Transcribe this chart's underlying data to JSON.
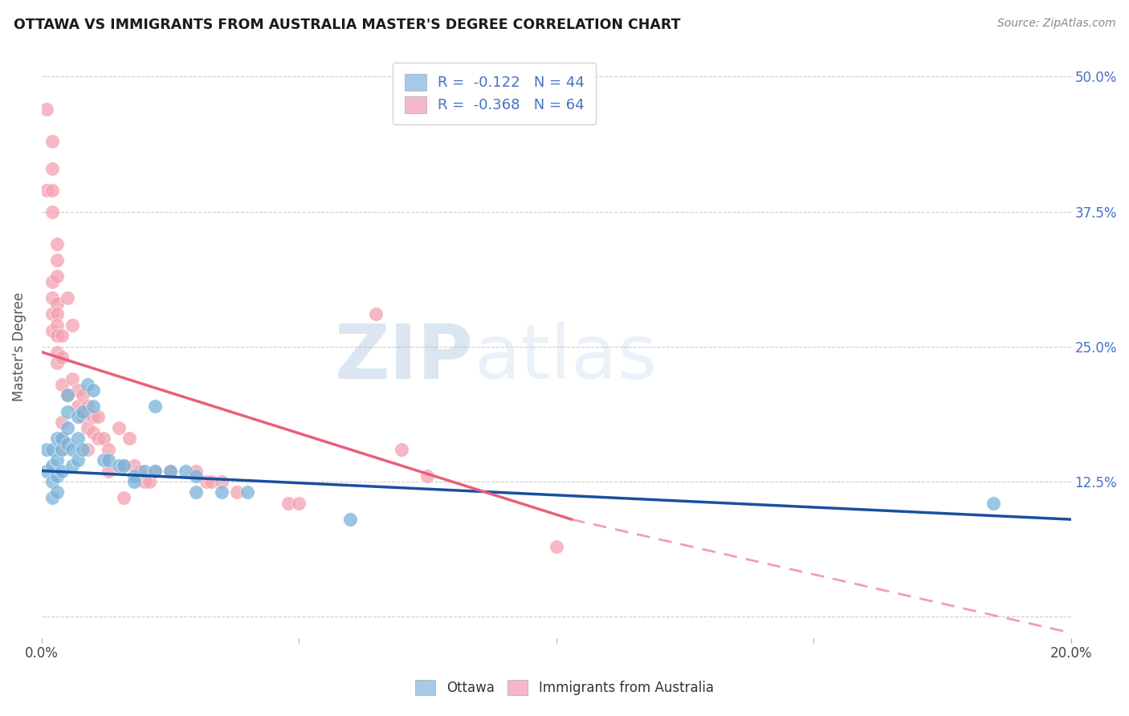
{
  "title": "OTTAWA VS IMMIGRANTS FROM AUSTRALIA MASTER'S DEGREE CORRELATION CHART",
  "source": "Source: ZipAtlas.com",
  "ylabel": "Master's Degree",
  "xmin": 0.0,
  "xmax": 0.2,
  "ymin": -0.02,
  "ymax": 0.52,
  "right_yticklabels": [
    "",
    "12.5%",
    "25.0%",
    "37.5%",
    "50.0%"
  ],
  "right_ytick_vals": [
    0.0,
    0.125,
    0.25,
    0.375,
    0.5
  ],
  "legend_entry_blue": "R =  -0.122   N = 44",
  "legend_entry_pink": "R =  -0.368   N = 64",
  "ottawa_color": "#7ab3d9",
  "australia_color": "#f4a0b0",
  "trend_ottawa_color": "#1a4fa0",
  "trend_australia_color": "#e8607a",
  "legend_box_blue": "#a8c8e8",
  "legend_box_pink": "#f4b8c8",
  "legend_text_color": "#4472c4",
  "watermark_zip": "ZIP",
  "watermark_atlas": "atlas",
  "watermark_color": "#c8d8ee",
  "grid_color": "#cccccc",
  "title_color": "#1a1a1a",
  "source_color": "#888888",
  "trend_ottawa_x0": 0.0,
  "trend_ottawa_y0": 0.135,
  "trend_ottawa_x1": 0.2,
  "trend_ottawa_y1": 0.09,
  "trend_australia_x0": 0.0,
  "trend_australia_y0": 0.245,
  "trend_australia_x1": 0.103,
  "trend_australia_y1": 0.09,
  "trend_australia_dash_x0": 0.103,
  "trend_australia_dash_y0": 0.09,
  "trend_australia_dash_x1": 0.2,
  "trend_australia_dash_y1": -0.015,
  "ottawa_points": [
    [
      0.001,
      0.155
    ],
    [
      0.001,
      0.135
    ],
    [
      0.002,
      0.155
    ],
    [
      0.002,
      0.14
    ],
    [
      0.002,
      0.125
    ],
    [
      0.002,
      0.11
    ],
    [
      0.003,
      0.165
    ],
    [
      0.003,
      0.145
    ],
    [
      0.003,
      0.13
    ],
    [
      0.003,
      0.115
    ],
    [
      0.004,
      0.155
    ],
    [
      0.004,
      0.135
    ],
    [
      0.004,
      0.165
    ],
    [
      0.005,
      0.175
    ],
    [
      0.005,
      0.16
    ],
    [
      0.005,
      0.19
    ],
    [
      0.005,
      0.205
    ],
    [
      0.006,
      0.155
    ],
    [
      0.006,
      0.14
    ],
    [
      0.007,
      0.145
    ],
    [
      0.007,
      0.165
    ],
    [
      0.007,
      0.185
    ],
    [
      0.008,
      0.155
    ],
    [
      0.008,
      0.19
    ],
    [
      0.009,
      0.215
    ],
    [
      0.01,
      0.21
    ],
    [
      0.01,
      0.195
    ],
    [
      0.012,
      0.145
    ],
    [
      0.013,
      0.145
    ],
    [
      0.015,
      0.14
    ],
    [
      0.016,
      0.14
    ],
    [
      0.018,
      0.13
    ],
    [
      0.018,
      0.125
    ],
    [
      0.02,
      0.135
    ],
    [
      0.022,
      0.135
    ],
    [
      0.022,
      0.195
    ],
    [
      0.025,
      0.135
    ],
    [
      0.028,
      0.135
    ],
    [
      0.03,
      0.13
    ],
    [
      0.03,
      0.115
    ],
    [
      0.035,
      0.115
    ],
    [
      0.04,
      0.115
    ],
    [
      0.06,
      0.09
    ],
    [
      0.185,
      0.105
    ]
  ],
  "australia_points": [
    [
      0.001,
      0.47
    ],
    [
      0.001,
      0.395
    ],
    [
      0.002,
      0.44
    ],
    [
      0.002,
      0.415
    ],
    [
      0.002,
      0.395
    ],
    [
      0.002,
      0.375
    ],
    [
      0.002,
      0.31
    ],
    [
      0.002,
      0.295
    ],
    [
      0.002,
      0.28
    ],
    [
      0.002,
      0.265
    ],
    [
      0.003,
      0.345
    ],
    [
      0.003,
      0.33
    ],
    [
      0.003,
      0.315
    ],
    [
      0.003,
      0.29
    ],
    [
      0.003,
      0.28
    ],
    [
      0.003,
      0.27
    ],
    [
      0.003,
      0.26
    ],
    [
      0.003,
      0.245
    ],
    [
      0.003,
      0.235
    ],
    [
      0.004,
      0.26
    ],
    [
      0.004,
      0.24
    ],
    [
      0.004,
      0.215
    ],
    [
      0.004,
      0.18
    ],
    [
      0.004,
      0.165
    ],
    [
      0.004,
      0.155
    ],
    [
      0.005,
      0.295
    ],
    [
      0.005,
      0.205
    ],
    [
      0.006,
      0.27
    ],
    [
      0.006,
      0.22
    ],
    [
      0.007,
      0.21
    ],
    [
      0.007,
      0.195
    ],
    [
      0.008,
      0.205
    ],
    [
      0.008,
      0.185
    ],
    [
      0.009,
      0.195
    ],
    [
      0.009,
      0.175
    ],
    [
      0.009,
      0.155
    ],
    [
      0.01,
      0.185
    ],
    [
      0.01,
      0.17
    ],
    [
      0.011,
      0.185
    ],
    [
      0.011,
      0.165
    ],
    [
      0.012,
      0.165
    ],
    [
      0.013,
      0.155
    ],
    [
      0.013,
      0.135
    ],
    [
      0.015,
      0.175
    ],
    [
      0.016,
      0.14
    ],
    [
      0.016,
      0.11
    ],
    [
      0.017,
      0.165
    ],
    [
      0.018,
      0.14
    ],
    [
      0.019,
      0.135
    ],
    [
      0.02,
      0.125
    ],
    [
      0.021,
      0.125
    ],
    [
      0.022,
      0.135
    ],
    [
      0.025,
      0.135
    ],
    [
      0.03,
      0.135
    ],
    [
      0.032,
      0.125
    ],
    [
      0.033,
      0.125
    ],
    [
      0.035,
      0.125
    ],
    [
      0.038,
      0.115
    ],
    [
      0.048,
      0.105
    ],
    [
      0.05,
      0.105
    ],
    [
      0.065,
      0.28
    ],
    [
      0.07,
      0.155
    ],
    [
      0.075,
      0.13
    ],
    [
      0.1,
      0.065
    ]
  ]
}
